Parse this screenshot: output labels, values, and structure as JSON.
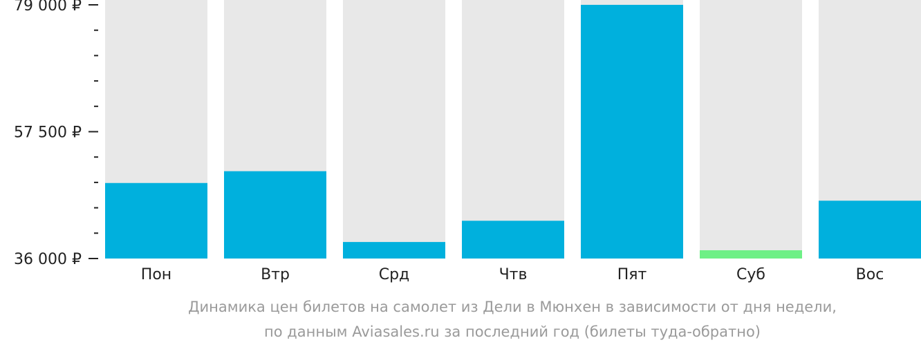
{
  "chart_data": {
    "type": "bar",
    "categories": [
      "Пон",
      "Втр",
      "Срд",
      "Чтв",
      "Пят",
      "Суб",
      "Вос"
    ],
    "values": [
      48800,
      50800,
      38800,
      42400,
      79000,
      37400,
      45800
    ],
    "highlight_index": 5,
    "ylim": [
      36000,
      79000
    ],
    "y_ticks": [
      {
        "value": 36000,
        "label": "36 000 ₽"
      },
      {
        "value": 57500,
        "label": "57 500 ₽"
      },
      {
        "value": 79000,
        "label": "79 000 ₽"
      }
    ],
    "minor_tick_step": 4300,
    "xlabel": "",
    "ylabel": ""
  },
  "colors": {
    "bar": "#00b0dd",
    "highlight": "#6ef086",
    "background_bar": "#e8e8e8",
    "axis": "#222222"
  },
  "caption": {
    "line1": "Динамика цен билетов на самолет из Дели в Мюнхен в зависимости от дня недели,",
    "line2": "по данным Aviasales.ru за последний год (билеты туда-обратно)"
  }
}
